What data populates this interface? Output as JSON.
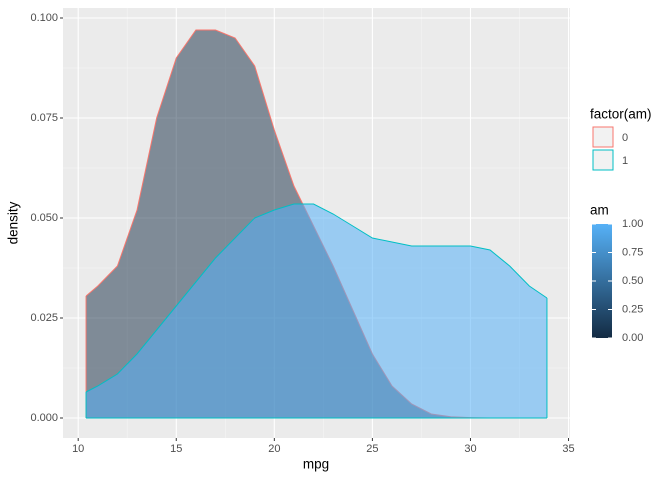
{
  "chart_data": {
    "type": "density",
    "x_label": "mpg",
    "y_label": "density",
    "x": [
      10.4,
      11,
      12,
      13,
      14,
      15,
      16,
      17,
      18,
      19,
      20,
      21,
      22,
      23,
      24,
      25,
      26,
      27,
      28,
      29,
      30,
      31,
      32,
      33,
      33.9
    ],
    "series": [
      {
        "name": "0",
        "color": "#f8766d",
        "fill": "#132b43",
        "alpha": 0.5,
        "values": [
          0.0305,
          0.033,
          0.038,
          0.052,
          0.075,
          0.09,
          0.097,
          0.097,
          0.095,
          0.088,
          0.072,
          0.058,
          0.048,
          0.038,
          0.027,
          0.016,
          0.008,
          0.0035,
          0.001,
          0.0003,
          0.0001,
          0,
          0,
          0,
          0
        ]
      },
      {
        "name": "1",
        "color": "#00bfc4",
        "fill": "#56b1f7",
        "alpha": 0.55,
        "values": [
          0.0065,
          0.008,
          0.011,
          0.016,
          0.022,
          0.028,
          0.034,
          0.04,
          0.045,
          0.05,
          0.052,
          0.0535,
          0.0535,
          0.051,
          0.048,
          0.045,
          0.044,
          0.043,
          0.043,
          0.043,
          0.043,
          0.042,
          0.038,
          0.033,
          0.03
        ]
      }
    ],
    "xlim": [
      9.225,
      35.075
    ],
    "xticks": [
      10,
      15,
      20,
      25,
      30,
      35
    ],
    "ylim": [
      -0.005,
      0.1025
    ],
    "yticks": [
      {
        "value": 0,
        "label": "0.000"
      },
      {
        "value": 0.025,
        "label": "0.025"
      },
      {
        "value": 0.05,
        "label": "0.050"
      },
      {
        "value": 0.075,
        "label": "0.075"
      },
      {
        "value": 0.1,
        "label": "0.100"
      }
    ],
    "grid": true,
    "legend_title": "factor(am)",
    "colorbar": {
      "title": "am",
      "low": "#132b43",
      "high": "#56b1f7",
      "lim": [
        0,
        1
      ],
      "ticks": [
        {
          "value": 0,
          "label": "0.00"
        },
        {
          "value": 0.25,
          "label": "0.25"
        },
        {
          "value": 0.5,
          "label": "0.50"
        },
        {
          "value": 0.75,
          "label": "0.75"
        },
        {
          "value": 1,
          "label": "1.00"
        }
      ]
    }
  }
}
